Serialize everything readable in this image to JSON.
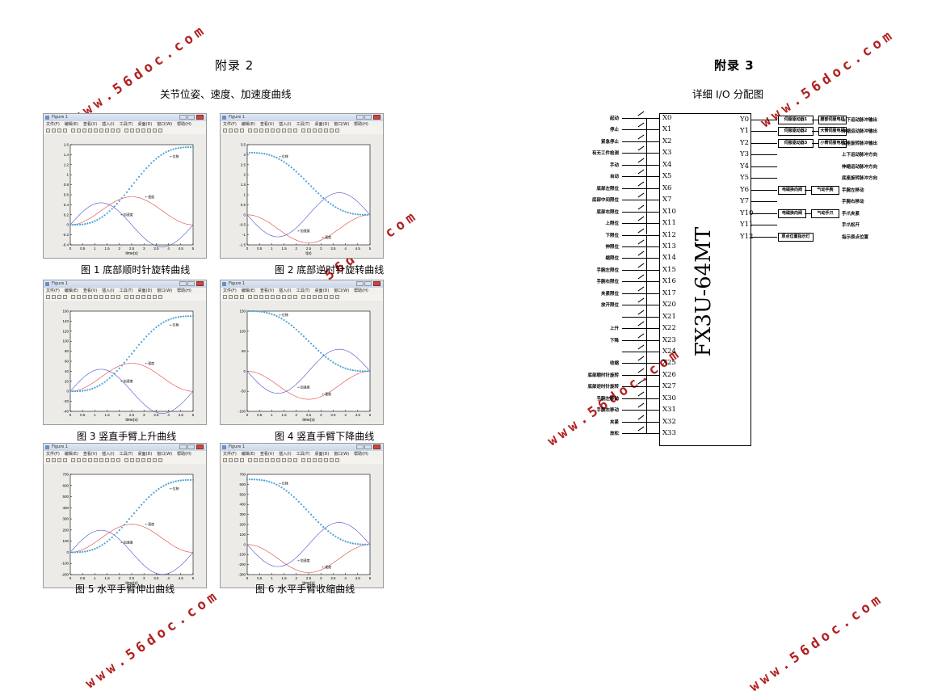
{
  "watermark": "www.56doc.com",
  "appendix2": {
    "heading": "附录 2",
    "subheading": "关节位姿、速度、加速度曲线"
  },
  "appendix3": {
    "heading": "附录 3",
    "subheading": "详细 I/O 分配图"
  },
  "figure_window": {
    "title": "Figure 1",
    "menu": [
      "文件(F)",
      "编辑(E)",
      "查看(V)",
      "插入(I)",
      "工具(T)",
      "桌面(D)",
      "窗口(W)",
      "帮助(H)"
    ]
  },
  "figures": [
    {
      "caption": "图 1 底部顺时针旋转曲线"
    },
    {
      "caption": "图 2 底部逆时针旋转曲线"
    },
    {
      "caption": "图 3 竖直手臂上升曲线"
    },
    {
      "caption": "图 4 竖直手臂下降曲线"
    },
    {
      "caption": "图 5 水平手臂伸出曲线"
    },
    {
      "caption": "图 6 水平手臂收缩曲线"
    }
  ],
  "chart_data": [
    {
      "type": "line",
      "xlabel": "time(s)",
      "xlim": [
        0,
        5
      ],
      "xticks": [
        "0",
        "0.5",
        "1",
        "1.5",
        "2",
        "2.5",
        "3",
        "3.5",
        "4",
        "4.5",
        "5"
      ],
      "ylim": [
        -0.4,
        1.6
      ],
      "yticks": [
        "-0.4",
        "-0.2",
        "0",
        "0.2",
        "0.4",
        "0.6",
        "0.8",
        "1",
        "1.2",
        "1.4",
        "1.6"
      ],
      "amp": 1.55,
      "dir": "up",
      "lab_pos": "←位移",
      "lab_vel": "←速度",
      "lab_acc": "←加速度"
    },
    {
      "type": "line",
      "xlabel": "t(s)",
      "xlim": [
        0,
        5
      ],
      "xticks": [
        "0",
        "0.5",
        "1",
        "1.5",
        "2",
        "2.5",
        "3",
        "3.5",
        "4",
        "4.5",
        "5"
      ],
      "ylim": [
        -1.5,
        3.5
      ],
      "yticks": [
        "-1.5",
        "-1",
        "-0.5",
        "0",
        "0.5",
        "1",
        "1.5",
        "2",
        "2.5",
        "3",
        "3.5"
      ],
      "amp": 3.1,
      "dir": "down",
      "lab_pos": "←位移",
      "lab_vel": "←速度",
      "lab_acc": "←加速度"
    },
    {
      "type": "line",
      "xlabel": "time(s)",
      "xlim": [
        0,
        5
      ],
      "xticks": [
        "0",
        "0.5",
        "1",
        "1.5",
        "2",
        "2.5",
        "3",
        "3.5",
        "4",
        "4.5",
        "5"
      ],
      "ylim": [
        -40,
        160
      ],
      "yticks": [
        "-40",
        "-20",
        "0",
        "20",
        "40",
        "60",
        "80",
        "100",
        "120",
        "140",
        "160"
      ],
      "amp": 150,
      "dir": "up",
      "lab_pos": "←位移",
      "lab_vel": "←速度",
      "lab_acc": "←加速度"
    },
    {
      "type": "line",
      "xlabel": "time(s)",
      "xlim": [
        0,
        5
      ],
      "xticks": [
        "0",
        "0.5",
        "1",
        "1.5",
        "2",
        "2.5",
        "3",
        "3.5",
        "4",
        "4.5",
        "5"
      ],
      "ylim": [
        -100,
        150
      ],
      "yticks": [
        "-100",
        "-50",
        "0",
        "50",
        "100",
        "150"
      ],
      "amp": 150,
      "dir": "down",
      "lab_pos": "←位移",
      "lab_vel": "←速度",
      "lab_acc": "←加速度"
    },
    {
      "type": "line",
      "xlabel": "time(s)",
      "xlim": [
        0,
        5
      ],
      "xticks": [
        "0",
        "0.5",
        "1",
        "1.5",
        "2",
        "2.5",
        "3",
        "3.5",
        "4",
        "4.5",
        "5"
      ],
      "ylim": [
        -200,
        700
      ],
      "yticks": [
        "-200",
        "-100",
        "0",
        "100",
        "200",
        "300",
        "400",
        "500",
        "600",
        "700"
      ],
      "amp": 650,
      "dir": "up",
      "lab_pos": "←位移",
      "lab_vel": "←速度",
      "lab_acc": "←加速度"
    },
    {
      "type": "line",
      "xlabel": "time(s)",
      "xlim": [
        0,
        5
      ],
      "xticks": [
        "0",
        "0.5",
        "1",
        "1.5",
        "2",
        "2.5",
        "3",
        "3.5",
        "4",
        "4.5",
        "5"
      ],
      "ylim": [
        -300,
        700
      ],
      "yticks": [
        "-300",
        "-200",
        "-100",
        "0",
        "100",
        "200",
        "300",
        "400",
        "500",
        "600",
        "700"
      ],
      "amp": 650,
      "dir": "down",
      "lab_pos": "←位移",
      "lab_vel": "←速度",
      "lab_acc": "←加速度"
    }
  ],
  "plc": {
    "model": "FX3U-64MT",
    "inputs": [
      {
        "addr": "X0",
        "label": "起动"
      },
      {
        "addr": "X1",
        "label": "停止"
      },
      {
        "addr": "X2",
        "label": "紧急停止"
      },
      {
        "addr": "X3",
        "label": "有无工件检测"
      },
      {
        "addr": "X4",
        "label": "手动"
      },
      {
        "addr": "X5",
        "label": "自动"
      },
      {
        "addr": "X6",
        "label": "底部左限位"
      },
      {
        "addr": "X7",
        "label": "底部中间限位"
      },
      {
        "addr": "X10",
        "label": "底部右限位"
      },
      {
        "addr": "X11",
        "label": "上限位"
      },
      {
        "addr": "X12",
        "label": "下限位"
      },
      {
        "addr": "X13",
        "label": "伸限位"
      },
      {
        "addr": "X14",
        "label": "缩限位"
      },
      {
        "addr": "X15",
        "label": "手腕左限位"
      },
      {
        "addr": "X16",
        "label": "手腕右限位"
      },
      {
        "addr": "X17",
        "label": "夹紧限位"
      },
      {
        "addr": "X20",
        "label": "放开限位"
      },
      {
        "addr": "X21",
        "label": ""
      },
      {
        "addr": "X22",
        "label": "上升"
      },
      {
        "addr": "X23",
        "label": "下降"
      },
      {
        "addr": "X24",
        "label": ""
      },
      {
        "addr": "X25",
        "label": "收缩"
      },
      {
        "addr": "X26",
        "label": "底部顺时针旋转"
      },
      {
        "addr": "X27",
        "label": "底部逆时针旋转"
      },
      {
        "addr": "X30",
        "label": "手腕左移动"
      },
      {
        "addr": "X31",
        "label": "手腕右移动"
      },
      {
        "addr": "X32",
        "label": "夹紧"
      },
      {
        "addr": "X33",
        "label": "放松"
      }
    ],
    "outputs": [
      {
        "addr": "Y0",
        "box": "伺服驱动器1",
        "box2": "腰部伺服电机",
        "label": "上下运动脉冲输出"
      },
      {
        "addr": "Y1",
        "box": "伺服驱动器2",
        "box2": "大臂伺服电机",
        "label": "伸缩运动脉冲输出"
      },
      {
        "addr": "Y2",
        "box": "伺服驱动器3",
        "box2": "小臂伺服电机",
        "label": "底座旋转脉冲输出"
      },
      {
        "addr": "Y3",
        "box": "",
        "box2": "",
        "label": "上下运动脉冲方向"
      },
      {
        "addr": "Y4",
        "box": "",
        "box2": "",
        "label": "伸缩运动脉冲方向"
      },
      {
        "addr": "Y5",
        "box": "",
        "box2": "",
        "label": "底座旋转脉冲方向"
      },
      {
        "addr": "Y6",
        "box": "电磁换向阀",
        "box2": "气动手腕",
        "label": "手腕左移动"
      },
      {
        "addr": "Y7",
        "box": "",
        "box2": "",
        "label": "手腕右移动"
      },
      {
        "addr": "Y10",
        "box": "电磁换向阀",
        "box2": "气动手爪",
        "label": "手爪夹紧"
      },
      {
        "addr": "Y11",
        "box": "",
        "box2": "",
        "label": "手爪松开"
      },
      {
        "addr": "Y12",
        "box": "原点位置指示灯",
        "box2": "",
        "label": "指示原点位置"
      }
    ]
  }
}
